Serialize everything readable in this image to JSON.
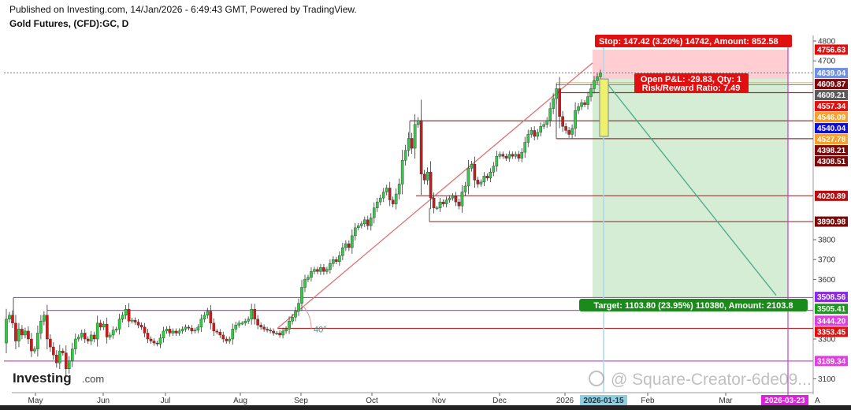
{
  "header": {
    "published": "Published on Investing.com, 14/Jan/2026 - 6:49:43 GMT, Powered by TradingView.",
    "symbol": "Gold Futures, (CFD):GC, D"
  },
  "logo": {
    "main": "Investing",
    "suffix": ".com"
  },
  "watermark": "@ Square-Creator-6de09...",
  "colors": {
    "up": "#2ecc40",
    "down": "#d01818",
    "stop_zone": "#ffcdd2",
    "target_zone": "#d4edd4"
  },
  "chart_data": {
    "type": "candlestick",
    "title": "Gold Futures, (CFD):GC, D",
    "ylim": [
      3050,
      4830
    ],
    "y_ticks": [
      4800,
      4700,
      3800,
      3700,
      3600,
      3300,
      3100
    ],
    "x_ticks": [
      "May",
      "Jun",
      "Jul",
      "Aug",
      "Sep",
      "Oct",
      "Nov",
      "Dec",
      "2026",
      "Feb",
      "Mar"
    ],
    "x_highlight_labels": [
      {
        "text": "2026-01-15",
        "color": "#8fd0e0"
      },
      {
        "text": "2026-03-23",
        "color": "#e020e0"
      }
    ],
    "axis_end_label": "A",
    "closes": [
      3400,
      3420,
      3380,
      3290,
      3350,
      3320,
      3340,
      3300,
      3240,
      3250,
      3330,
      3390,
      3420,
      3300,
      3260,
      3220,
      3180,
      3240,
      3230,
      3150,
      3190,
      3250,
      3300,
      3310,
      3330,
      3300,
      3290,
      3320,
      3300,
      3380,
      3360,
      3375,
      3310,
      3320,
      3345,
      3350,
      3400,
      3420,
      3450,
      3390,
      3395,
      3385,
      3370,
      3360,
      3330,
      3300,
      3290,
      3280,
      3275,
      3305,
      3340,
      3350,
      3330,
      3340,
      3330,
      3340,
      3350,
      3360,
      3355,
      3340,
      3345,
      3360,
      3400,
      3420,
      3440,
      3380,
      3340,
      3335,
      3320,
      3300,
      3290,
      3300,
      3350,
      3370,
      3380,
      3380,
      3390,
      3400,
      3450,
      3400,
      3370,
      3360,
      3350,
      3345,
      3340,
      3330,
      3330,
      3320,
      3340,
      3350,
      3390,
      3410,
      3440,
      3480,
      3560,
      3600,
      3610,
      3640,
      3650,
      3640,
      3660,
      3640,
      3650,
      3680,
      3700,
      3690,
      3720,
      3760,
      3780,
      3760,
      3820,
      3860,
      3870,
      3880,
      3900,
      3870,
      3910,
      3960,
      3990,
      4010,
      4040,
      4060,
      4000,
      3980,
      4030,
      4080,
      4200,
      4250,
      4310,
      4260,
      4380,
      4400,
      4130,
      4100,
      4140,
      4010,
      3960,
      3960,
      3990,
      3980,
      4000,
      4010,
      4020,
      3990,
      3970,
      4040,
      4070,
      4160,
      4180,
      4100,
      4080,
      4090,
      4120,
      4110,
      4140,
      4170,
      4220,
      4230,
      4220,
      4210,
      4230,
      4220,
      4230,
      4210,
      4240,
      4290,
      4330,
      4350,
      4320,
      4340,
      4370,
      4380,
      4400,
      4460,
      4510,
      4560,
      4420,
      4370,
      4350,
      4330,
      4360,
      4450,
      4470,
      4490,
      4480,
      4520,
      4560,
      4600,
      4620,
      4639.04
    ],
    "first_open": 3280,
    "horizontal_levels": [
      {
        "price": 3508.56,
        "color": "#b040c0"
      },
      {
        "price": 3444.2,
        "color": "#c050d0"
      },
      {
        "price": 3189.34,
        "color": "#c050d0"
      },
      {
        "price": 3353.45,
        "color": "#b03030"
      },
      {
        "price": 4398.21,
        "color": "#8b3a3a"
      },
      {
        "price": 4020.89,
        "color": "#8b3a3a"
      },
      {
        "price": 3890.98,
        "color": "#8b3a3a"
      },
      {
        "price": 4540.04,
        "color": "#8b3a3a"
      },
      {
        "price": 4308.51,
        "color": "#8b3a3a"
      }
    ],
    "trend_angle_label": "40°",
    "price_labels": [
      {
        "text": "4756.63",
        "price": 4756.63,
        "color": "#e01010"
      },
      {
        "text": "4639.04",
        "price": 4639.04,
        "color": "#6f8fe0"
      },
      {
        "text": "4609.87",
        "price": 4618,
        "color": "#7a0a0a"
      },
      {
        "text": "4609.21",
        "price": 4580,
        "color": "#5a5a5a"
      },
      {
        "text": "4557.34",
        "price": 4545,
        "color": "#e01010"
      },
      {
        "text": "4546.09",
        "price": 4506,
        "color": "#f5a030"
      },
      {
        "text": "4540.04",
        "price": 4468,
        "color": "#1010cc"
      },
      {
        "text": "4527.78",
        "price": 4430,
        "color": "#f5a030"
      },
      {
        "text": "4398.21",
        "price": 4382,
        "color": "#7a0a0a"
      },
      {
        "text": "4308.51",
        "price": 4320,
        "color": "#7a0a0a"
      },
      {
        "text": "4020.89",
        "price": 4020.89,
        "color": "#b01010"
      },
      {
        "text": "3890.98",
        "price": 3890.98,
        "color": "#7a0a0a"
      },
      {
        "text": "3508.56",
        "price": 3512,
        "color": "#8a2be2"
      },
      {
        "text": "3505.41",
        "price": 3452,
        "color": "#1a9a1a"
      },
      {
        "text": "3444.20",
        "price": 3392,
        "color": "#e040e0"
      },
      {
        "text": "3353.45",
        "price": 3345,
        "color": "#e01010"
      },
      {
        "text": "3189.34",
        "price": 3189.34,
        "color": "#e040e0"
      }
    ],
    "position": {
      "entry": 4609.21,
      "stop": 4756.63,
      "target": 3505.41,
      "stop_label": "Stop: 147.42 (3.20%) 14742, Amount: 852.58",
      "pnl_label": "Open P&L: -29.83, Qty: 1",
      "rr_label": "Risk/Reward Ratio: 7.49",
      "target_label": "Target: 1103.80 (23.95%) 110380, Amount: 2103.8"
    }
  }
}
